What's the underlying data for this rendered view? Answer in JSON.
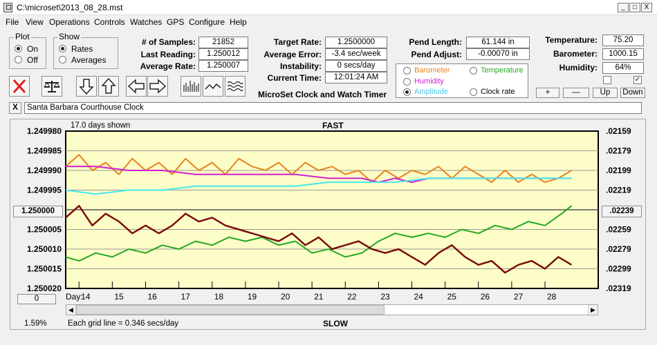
{
  "window": {
    "title": "C:\\microset\\2013_08_28.mst",
    "min": "_",
    "max": "□",
    "close": "X"
  },
  "menu": [
    "File",
    "View",
    "Operations",
    "Controls",
    "Watches",
    "GPS",
    "Configure",
    "Help"
  ],
  "plot_group": {
    "label": "Plot",
    "on": "On",
    "off": "Off",
    "selected": "On"
  },
  "show_group": {
    "label": "Show",
    "rates": "Rates",
    "averages": "Averages",
    "selected": "Rates"
  },
  "stats": {
    "samples_label": "# of Samples:",
    "samples": "21852",
    "last_label": "Last Reading:",
    "last": "1.250012",
    "avg_label": "Average Rate:",
    "avg": "1.250007"
  },
  "rates": {
    "target_label": "Target Rate:",
    "target": "1.2500000",
    "error_label": "Average Error:",
    "error": "-3.4 sec/week",
    "instab_label": "Instability:",
    "instab": "0 secs/day",
    "time_label": "Current Time:",
    "time": "12:01:24 AM",
    "app_name": "MicroSet Clock and Watch Timer"
  },
  "pendulum": {
    "length_label": "Pend Length:",
    "length": "61.144 in",
    "adjust_label": "Pend Adjust:",
    "adjust": "-0.00070 in"
  },
  "sensors": {
    "temp_label": "Temperature:",
    "temp": "75.20",
    "baro_label": "Barometer:",
    "baro": "1000.15",
    "hum_label": "Humidity:",
    "hum": "64%",
    "checkbox1": "",
    "checkbox2": "✓"
  },
  "overlay": {
    "barometer": "Barometer",
    "temperature": "Temperature",
    "humidity": "Humidity",
    "amplitude": "Amplitude",
    "clock_rate": "Clock rate",
    "selected": "Amplitude"
  },
  "scale_buttons": {
    "plus": "+",
    "minus": "—",
    "up": "Up",
    "down": "Down"
  },
  "clock_name": {
    "clear": "X",
    "value": "Santa Barbara Courthouse Clock"
  },
  "colors": {
    "barometer": "#e8821a",
    "temperature": "#22a822",
    "humidity": "#d020d0",
    "amplitude": "#44e8ee",
    "clock_rate": "#7a0d0d",
    "plot_bg": "#fdfdc8"
  },
  "chart_data": {
    "type": "line",
    "days_shown": "17.0 days shown",
    "top_label": "FAST",
    "bottom_label": "SLOW",
    "grid_note": "Each grid line = 0.346 secs/day",
    "percent": "1.59%",
    "center_button": "1.250000",
    "zero_button": "0",
    "right_button": ".02239",
    "x_prefix": "Day:",
    "x_ticks": [
      "14",
      "15",
      "16",
      "17",
      "18",
      "19",
      "20",
      "21",
      "22",
      "23",
      "24",
      "25",
      "26",
      "27",
      "28"
    ],
    "x_range": [
      13.6,
      29.6
    ],
    "y_left_ticks": [
      "1.249980",
      "1.249985",
      "1.249990",
      "1.249995",
      "1.250000",
      "1.250005",
      "1.250010",
      "1.250015",
      "1.250020"
    ],
    "y_left_range": [
      1.24998,
      1.25002
    ],
    "y_right_ticks": [
      ".02159",
      ".02179",
      ".02199",
      ".02219",
      ".02239",
      ".02259",
      ".02279",
      ".02299",
      ".02319"
    ],
    "series": [
      {
        "key": "barometer",
        "x": [
          13.6,
          14.0,
          14.4,
          14.8,
          15.2,
          15.6,
          16.0,
          16.4,
          16.8,
          17.2,
          17.6,
          18.0,
          18.4,
          18.8,
          19.2,
          19.6,
          20.0,
          20.4,
          20.8,
          21.2,
          21.6,
          22.0,
          22.4,
          22.8,
          23.2,
          23.6,
          24.0,
          24.4,
          24.8,
          25.2,
          25.6,
          26.0,
          26.4,
          26.8,
          27.2,
          27.6,
          28.0,
          28.4,
          28.8
        ],
        "y": [
          1.249989,
          1.249986,
          1.24999,
          1.249988,
          1.249991,
          1.249987,
          1.24999,
          1.249988,
          1.249991,
          1.249987,
          1.24999,
          1.249988,
          1.249991,
          1.249987,
          1.249989,
          1.24999,
          1.249988,
          1.249991,
          1.249988,
          1.24999,
          1.249989,
          1.249991,
          1.24999,
          1.249993,
          1.24999,
          1.249992,
          1.24999,
          1.249991,
          1.249989,
          1.249992,
          1.249989,
          1.249991,
          1.249993,
          1.24999,
          1.249993,
          1.249991,
          1.249993,
          1.249992,
          1.24999
        ]
      },
      {
        "key": "humidity",
        "x": [
          13.6,
          14.5,
          15.5,
          16.5,
          17.5,
          18.5,
          19.5,
          20.5,
          21.5,
          22.5,
          23.0,
          23.5,
          24.0,
          24.5,
          25.0,
          26.0,
          27.0,
          28.0,
          28.8
        ],
        "y": [
          1.249989,
          1.249989,
          1.24999,
          1.24999,
          1.249991,
          1.249991,
          1.249991,
          1.249991,
          1.249992,
          1.249992,
          1.249993,
          1.249992,
          1.249993,
          1.249992,
          1.249992,
          1.249992,
          1.249992,
          1.249992,
          1.249992
        ]
      },
      {
        "key": "amplitude",
        "x": [
          13.6,
          14.5,
          15.5,
          16.5,
          17.5,
          18.5,
          19.5,
          20.5,
          21.5,
          22.5,
          23.5,
          24.5,
          25.5,
          26.5,
          27.5,
          28.8
        ],
        "y": [
          1.249995,
          1.249996,
          1.249995,
          1.249995,
          1.249994,
          1.249994,
          1.249994,
          1.249994,
          1.249993,
          1.249993,
          1.249993,
          1.249992,
          1.249992,
          1.249992,
          1.249992,
          1.249992
        ]
      },
      {
        "key": "temperature",
        "x": [
          13.6,
          14.0,
          14.5,
          15.0,
          15.5,
          16.0,
          16.5,
          17.0,
          17.5,
          18.0,
          18.5,
          19.0,
          19.5,
          20.0,
          20.5,
          21.0,
          21.5,
          22.0,
          22.5,
          23.0,
          23.5,
          24.0,
          24.5,
          25.0,
          25.5,
          26.0,
          26.5,
          27.0,
          27.5,
          28.0,
          28.5,
          28.8
        ],
        "y": [
          1.250012,
          1.250013,
          1.250011,
          1.250012,
          1.25001,
          1.250011,
          1.250009,
          1.25001,
          1.250008,
          1.250009,
          1.250007,
          1.250008,
          1.250007,
          1.250009,
          1.250008,
          1.250011,
          1.25001,
          1.250012,
          1.250011,
          1.250008,
          1.250006,
          1.250007,
          1.250006,
          1.250007,
          1.250005,
          1.250006,
          1.250004,
          1.250005,
          1.250003,
          1.250004,
          1.250001,
          1.249999
        ]
      },
      {
        "key": "clock_rate",
        "x": [
          13.6,
          14.0,
          14.4,
          14.8,
          15.2,
          15.6,
          16.0,
          16.4,
          16.8,
          17.2,
          17.6,
          18.0,
          18.4,
          18.8,
          19.2,
          19.6,
          20.0,
          20.4,
          20.8,
          21.2,
          21.6,
          22.0,
          22.4,
          22.8,
          23.2,
          23.6,
          24.0,
          24.4,
          24.8,
          25.2,
          25.6,
          26.0,
          26.4,
          26.8,
          27.2,
          27.6,
          28.0,
          28.4,
          28.8
        ],
        "y": [
          1.250002,
          1.249999,
          1.250004,
          1.250001,
          1.250003,
          1.250006,
          1.250004,
          1.250006,
          1.250004,
          1.250001,
          1.250003,
          1.250002,
          1.250004,
          1.250005,
          1.250006,
          1.250007,
          1.250008,
          1.250006,
          1.250009,
          1.250007,
          1.25001,
          1.250009,
          1.250008,
          1.25001,
          1.250011,
          1.25001,
          1.250012,
          1.250014,
          1.250011,
          1.250009,
          1.250012,
          1.250014,
          1.250013,
          1.250016,
          1.250014,
          1.250013,
          1.250015,
          1.250012,
          1.250014
        ]
      }
    ]
  }
}
